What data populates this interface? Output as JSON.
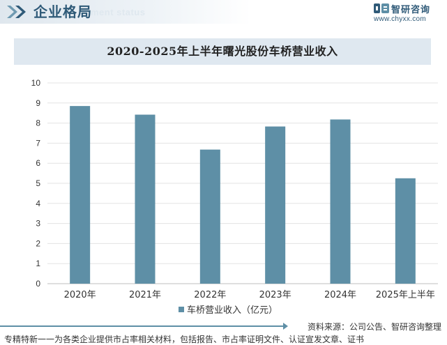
{
  "header": {
    "title": "企业格局",
    "subtitle_en": "ment status"
  },
  "brand": {
    "name": "智研咨询",
    "url": "www.chyxx.com"
  },
  "chart_data": {
    "type": "bar",
    "title": "2020-2025年上半年曙光股份车桥营业收入",
    "categories": [
      "2020年",
      "2021年",
      "2022年",
      "2023年",
      "2024年",
      "2025年上半年"
    ],
    "series": [
      {
        "name": "车桥营业收入（亿元）",
        "values": [
          8.85,
          8.42,
          6.68,
          7.83,
          8.18,
          5.25
        ],
        "color": "#5e8fa6"
      }
    ],
    "xlabel": "",
    "ylabel": "",
    "ylim": [
      0,
      10
    ],
    "yticks": [
      "0",
      "1",
      "2",
      "3",
      "4",
      "5",
      "6",
      "7",
      "8",
      "9",
      "10"
    ],
    "grid": true,
    "legend_position": "bottom"
  },
  "footer": {
    "source": "资料来源：公司公告、智研咨询整理",
    "note": "专精特新一一为各类企业提供市占率相关材料，包括报告、市占率证明文件、认证宣发文章、证书"
  }
}
